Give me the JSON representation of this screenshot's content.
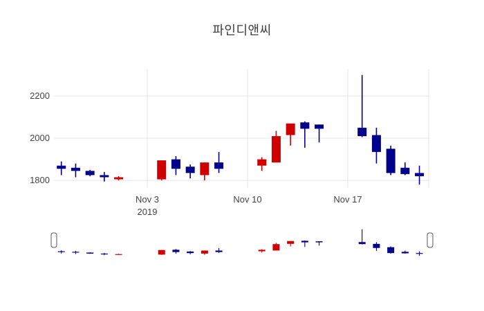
{
  "title": "파인디앤씨",
  "chart_data": {
    "type": "candlestick",
    "title": "파인디앤씨",
    "increasing_color": "#d10000",
    "decreasing_color": "#00008b",
    "legend": "none",
    "grid": "on",
    "y_ticks": [
      2200,
      2000,
      1800
    ],
    "y_range": [
      1764,
      2328
    ],
    "x_ticks": [
      {
        "label": "Nov 3",
        "sublabel": "2019",
        "date": "2019-11-03"
      },
      {
        "label": "Nov 10",
        "sublabel": "",
        "date": "2019-11-10"
      },
      {
        "label": "Nov 17",
        "sublabel": "",
        "date": "2019-11-17"
      }
    ],
    "rangeslider": "visible, full range selected",
    "candles": [
      {
        "date": "2019-10-28",
        "open": 1870,
        "high": 1890,
        "low": 1825,
        "close": 1855
      },
      {
        "date": "2019-10-29",
        "open": 1860,
        "high": 1880,
        "low": 1815,
        "close": 1845
      },
      {
        "date": "2019-10-30",
        "open": 1845,
        "high": 1850,
        "low": 1820,
        "close": 1825
      },
      {
        "date": "2019-10-31",
        "open": 1825,
        "high": 1840,
        "low": 1795,
        "close": 1815
      },
      {
        "date": "2019-11-01",
        "open": 1805,
        "high": 1820,
        "low": 1800,
        "close": 1815
      },
      {
        "date": "2019-11-04",
        "open": 1805,
        "high": 1895,
        "low": 1800,
        "close": 1895
      },
      {
        "date": "2019-11-05",
        "open": 1900,
        "high": 1915,
        "low": 1825,
        "close": 1855
      },
      {
        "date": "2019-11-06",
        "open": 1865,
        "high": 1875,
        "low": 1810,
        "close": 1835
      },
      {
        "date": "2019-11-07",
        "open": 1825,
        "high": 1885,
        "low": 1800,
        "close": 1885
      },
      {
        "date": "2019-11-08",
        "open": 1885,
        "high": 1935,
        "low": 1835,
        "close": 1855
      },
      {
        "date": "2019-11-11",
        "open": 1870,
        "high": 1910,
        "low": 1845,
        "close": 1900
      },
      {
        "date": "2019-11-12",
        "open": 1885,
        "high": 2035,
        "low": 1885,
        "close": 2010
      },
      {
        "date": "2019-11-13",
        "open": 2015,
        "high": 2070,
        "low": 1965,
        "close": 2070
      },
      {
        "date": "2019-11-14",
        "open": 2075,
        "high": 2080,
        "low": 1955,
        "close": 2045
      },
      {
        "date": "2019-11-15",
        "open": 2065,
        "high": 2065,
        "low": 1980,
        "close": 2045
      },
      {
        "date": "2019-11-18",
        "open": 2050,
        "high": 2300,
        "low": 2005,
        "close": 2010
      },
      {
        "date": "2019-11-19",
        "open": 2015,
        "high": 2050,
        "low": 1880,
        "close": 1935
      },
      {
        "date": "2019-11-20",
        "open": 1950,
        "high": 1965,
        "low": 1825,
        "close": 1835
      },
      {
        "date": "2019-11-21",
        "open": 1860,
        "high": 1885,
        "low": 1825,
        "close": 1830
      },
      {
        "date": "2019-11-22",
        "open": 1835,
        "high": 1870,
        "low": 1780,
        "close": 1820
      }
    ]
  }
}
